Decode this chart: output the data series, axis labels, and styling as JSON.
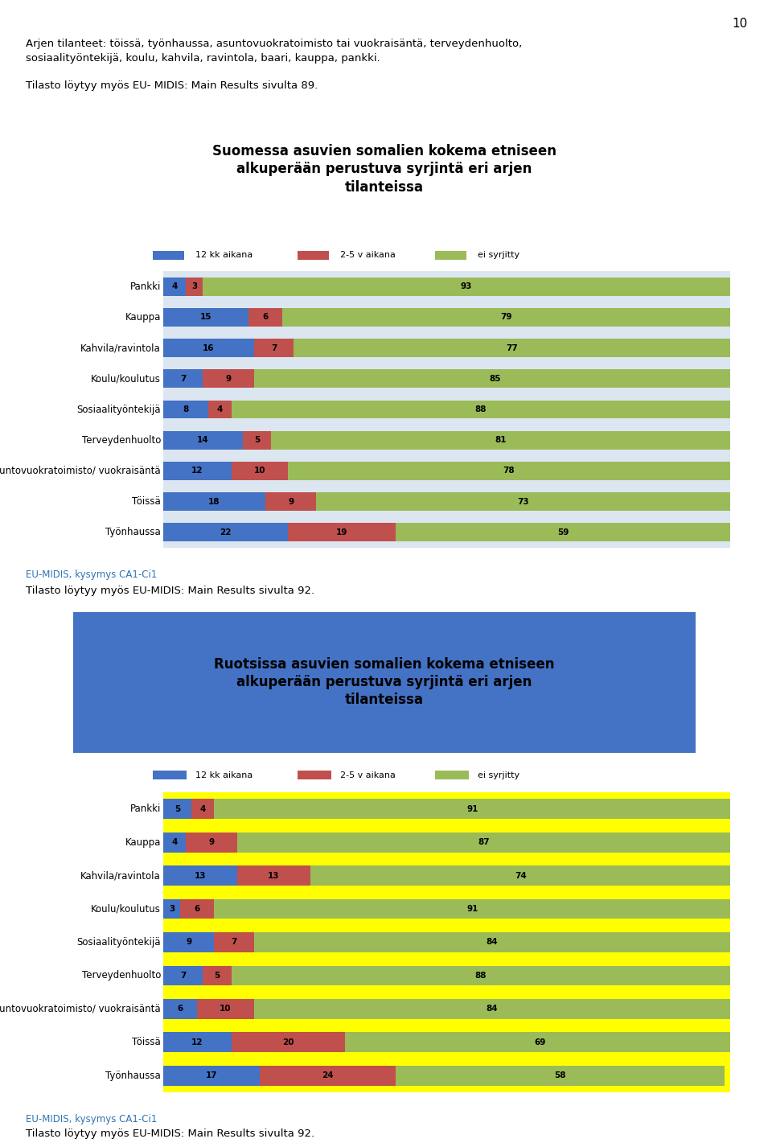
{
  "page_number": "10",
  "source_label": "EU-MIDIS, kysymys CA1-Ci1",
  "text1": "Tilasto löytyy myös EU- MIDIS: Main Results sivulta 89.",
  "text2": "Tilasto löytyy myös EU-MIDIS: Main Results sivulta 92.",
  "text3": "Tilasto löytyy myös EU-MIDIS: Main Results sivulta 92.",
  "chart1": {
    "title_line1": "Suomessa asuvien somalien kokema etniseen",
    "title_line2": "alkuperään perustuva syrjintä eri arjen",
    "title_line3": "tilanteissa",
    "bg_outer": "#dce6f1",
    "bg_title": "#ffffff",
    "title_color": "#000000",
    "categories": [
      "Pankki",
      "Kauppa",
      "Kahvila/ravintola",
      "Koulu/koulutus",
      "Sosiaalityöntekijä",
      "Terveydenhuolto",
      "Asuntovuokratoimisto/ vuokraisäntä",
      "Töissä",
      "Työnhaussa"
    ],
    "val_12kk": [
      4,
      15,
      16,
      7,
      8,
      14,
      12,
      18,
      22
    ],
    "val_25v": [
      3,
      6,
      7,
      9,
      4,
      5,
      10,
      9,
      19
    ],
    "val_ei": [
      93,
      79,
      77,
      85,
      88,
      81,
      78,
      73,
      59
    ],
    "color_12kk": "#4472c4",
    "color_25v": "#c0504d",
    "color_ei": "#9bbb59",
    "legend_12kk": "12 kk aikana",
    "legend_25v": "2-5 v aikana",
    "legend_ei": "ei syrjitty"
  },
  "chart2": {
    "title_line1": "Ruotsissa asuvien somalien kokema etniseen",
    "title_line2": "alkuperään perustuva syrjintä eri arjen",
    "title_line3": "tilanteissa",
    "bg_outer": "#ffff00",
    "bg_title": "#4472c4",
    "title_color": "#000000",
    "categories": [
      "Pankki",
      "Kauppa",
      "Kahvila/ravintola",
      "Koulu/koulutus",
      "Sosiaalityöntekijä",
      "Terveydenhuolto",
      "Asuntovuokratoimisto/ vuokraisäntä",
      "Töissä",
      "Työnhaussa"
    ],
    "val_12kk": [
      5,
      4,
      13,
      3,
      9,
      7,
      6,
      12,
      17
    ],
    "val_25v": [
      4,
      9,
      13,
      6,
      7,
      5,
      10,
      20,
      24
    ],
    "val_ei": [
      91,
      87,
      74,
      91,
      84,
      88,
      84,
      69,
      58
    ],
    "color_12kk": "#4472c4",
    "color_25v": "#c0504d",
    "color_ei": "#9bbb59",
    "legend_12kk": "12 kk aikana",
    "legend_25v": "2-5 v aikana",
    "legend_ei": "ei syrjitty"
  }
}
